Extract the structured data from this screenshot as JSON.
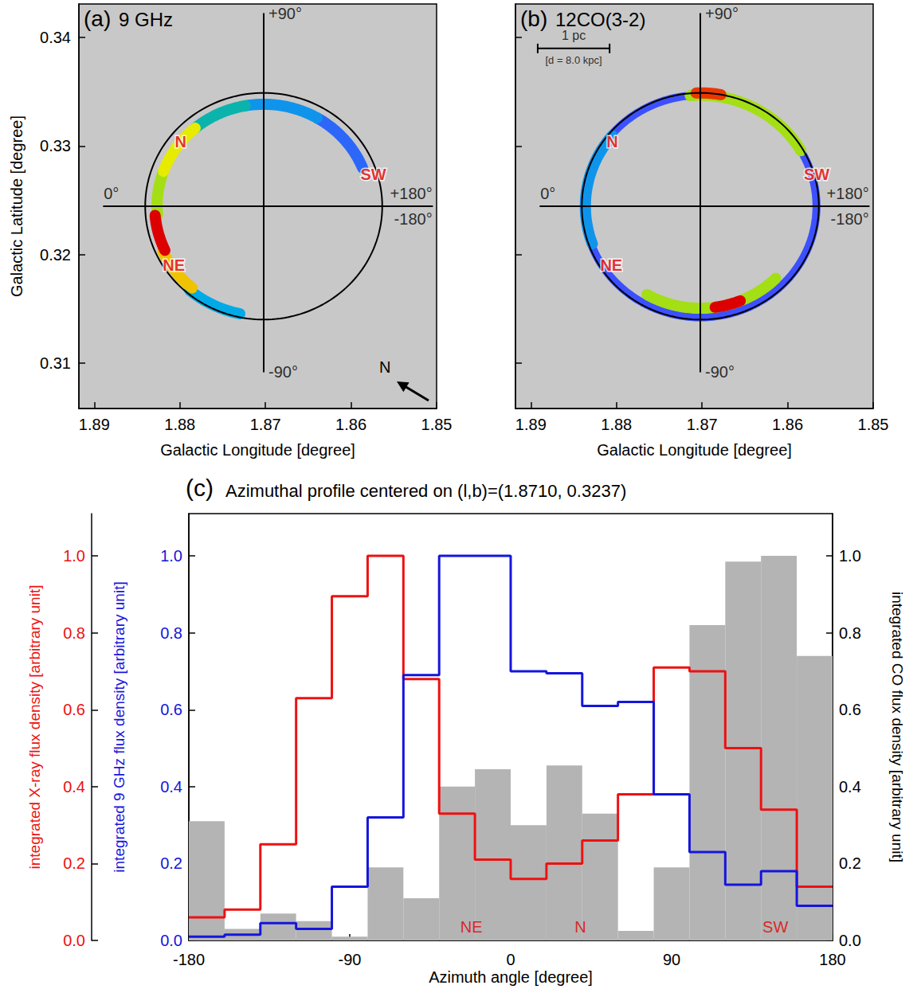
{
  "chart_data": [
    {
      "type": "map",
      "panel": "(a)",
      "title": "9 GHz",
      "xlabel": "Galactic Longitude [degree]",
      "ylabel": "Galactic Latitude [degree]",
      "xlim": [
        1.8918,
        1.85
      ],
      "xticks": [
        1.89,
        1.88,
        1.87,
        1.86,
        1.85
      ],
      "ylim": [
        0.3058,
        0.3431
      ],
      "yticks": [
        0.31,
        0.32,
        0.33,
        0.34
      ],
      "ellipse": {
        "l": 1.8702,
        "b": 0.32445,
        "semi_l": 0.01385,
        "semi_b": 0.01045
      },
      "crosshair": {
        "l": [
          1.8889,
          1.8505
        ],
        "b": [
          0.3092,
          0.3422
        ],
        "labels": {
          "top": "+90°",
          "bottom": "-90°",
          "left": "0°",
          "right": [
            "+180°",
            "-180°"
          ]
        }
      },
      "emission": [
        {
          "from": -78,
          "to": -50,
          "level": 0.45,
          "r": 0.97
        },
        {
          "from": -50,
          "to": -25,
          "level": 0.8,
          "r": 0.94
        },
        {
          "from": -25,
          "to": -5,
          "level": 1.0,
          "r": 0.92
        },
        {
          "from": -5,
          "to": 20,
          "level": 0.7,
          "r": 0.9
        },
        {
          "from": 20,
          "to": 50,
          "level": 0.75,
          "r": 0.9
        },
        {
          "from": 50,
          "to": 80,
          "level": 0.5,
          "r": 0.9
        },
        {
          "from": 80,
          "to": 120,
          "level": 0.4,
          "r": 0.9
        },
        {
          "from": 120,
          "to": 158,
          "level": 0.3,
          "r": 0.9
        }
      ],
      "regions": [
        {
          "text": "N",
          "l": 1.8799,
          "b": 0.3304
        },
        {
          "text": "NE",
          "l": 1.8807,
          "b": 0.319
        },
        {
          "text": "SW",
          "l": 1.8574,
          "b": 0.3274
        }
      ],
      "north_arrow": "N"
    },
    {
      "type": "map",
      "panel": "(b)",
      "title": "12CO(3-2)",
      "xlabel": "Galactic Longitude [degree]",
      "xlim": [
        1.8918,
        1.85
      ],
      "xticks": [
        1.89,
        1.88,
        1.87,
        1.86,
        1.85
      ],
      "ylim": [
        0.3058,
        0.3431
      ],
      "yticks": [
        0.31,
        0.32,
        0.33,
        0.34
      ],
      "tick_labels": "x",
      "ellipse": {
        "l": 1.8702,
        "b": 0.32445,
        "semi_l": 0.01385,
        "semi_b": 0.01045
      },
      "crosshair": {
        "l": [
          1.8889,
          1.8505
        ],
        "b": [
          0.3092,
          0.3422
        ],
        "labels": {
          "top": "+90°",
          "bottom": "-90°",
          "left": "0°",
          "right": [
            "+180°",
            "-180°"
          ]
        }
      },
      "emission": [
        {
          "from": -180,
          "to": 180,
          "level": 0.25,
          "r": 0.98
        },
        {
          "from": -135,
          "to": -60,
          "level": 0.7,
          "r": 0.9
        },
        {
          "from": -112,
          "to": -98,
          "level": 1.0,
          "r": 0.9
        },
        {
          "from": -20,
          "to": 40,
          "level": 0.4,
          "r": 0.97
        },
        {
          "from": 85,
          "to": 150,
          "level": 0.7,
          "r": 0.98
        },
        {
          "from": 88,
          "to": 100,
          "level": 0.95,
          "r": 1.0
        }
      ],
      "regions": [
        {
          "text": "N",
          "l": 1.8805,
          "b": 0.3304
        },
        {
          "text": "NE",
          "l": 1.8806,
          "b": 0.319
        },
        {
          "text": "SW",
          "l": 1.8566,
          "b": 0.3274
        }
      ],
      "scale_bar": {
        "label": "1 pc",
        "distance": "[d = 8.0 kpc]",
        "l": [
          1.8892,
          1.8808
        ],
        "b": 0.339
      }
    },
    {
      "type": "histogram",
      "panel": "(c)",
      "title": "Azimuthal profile centered on (l,b)=(1.8710, 0.3237)",
      "xlabel": "Azimuth angle [degree]",
      "xlim": [
        -180,
        180
      ],
      "xticks": [
        -180,
        -90,
        0,
        90,
        180
      ],
      "ylabel": "integrated X-ray flux density [arbitrary unit]",
      "ylim": [
        0,
        1.11
      ],
      "yticks": [
        {
          "value": 0,
          "label": "0.0"
        },
        0.2,
        0.4,
        0.6,
        0.8,
        {
          "value": 1,
          "label": "1.0"
        }
      ],
      "y2label": "integrated 9 GHz flux density [arbitrary unit]",
      "y2lim": [
        0,
        1.11
      ],
      "y2ticks": [
        {
          "value": 0,
          "label": "0.0"
        },
        0.2,
        0.4,
        0.6,
        0.8,
        {
          "value": 1,
          "label": "1.0"
        }
      ],
      "y3label": "integrated CO flux density [arbitrary unit]",
      "y3lim": [
        0,
        1.11
      ],
      "y3ticks": [
        {
          "value": 0,
          "label": "0.0"
        },
        0.2,
        0.4,
        0.6,
        0.8,
        {
          "value": 1,
          "label": "1.0"
        }
      ],
      "bins": [
        -180,
        -160,
        -140,
        -120,
        -100,
        -80,
        -60,
        -40,
        -20,
        0,
        20,
        40,
        60,
        80,
        100,
        120,
        140,
        160,
        180
      ],
      "series": [
        {
          "type": "bar",
          "axis": "y3",
          "color": "#b4b4b4",
          "values": [
            0.31,
            0.03,
            0.07,
            0.05,
            0.01,
            0.19,
            0.11,
            0.4,
            0.445,
            0.3,
            0.455,
            0.33,
            0.025,
            0.19,
            0.82,
            0.985,
            1.0,
            0.74
          ]
        },
        {
          "type": "line",
          "line_style": "step",
          "axis": "y",
          "color": "#ee1111",
          "values": [
            0.06,
            0.08,
            0.25,
            0.63,
            0.895,
            1.0,
            0.68,
            0.33,
            0.21,
            0.16,
            0.2,
            0.26,
            0.38,
            0.71,
            0.7,
            0.5,
            0.34,
            0.14
          ]
        },
        {
          "type": "line",
          "line_style": "step",
          "axis": "y2",
          "color": "#1515dd",
          "values": [
            0.01,
            0.015,
            0.045,
            0.03,
            0.14,
            0.32,
            0.69,
            1.0,
            1.0,
            0.7,
            0.695,
            0.61,
            0.62,
            0.38,
            0.23,
            0.145,
            0.18,
            0.09
          ]
        }
      ],
      "annotations": [
        {
          "text": "NE",
          "x": -22,
          "y": 0.035
        },
        {
          "text": "N",
          "x": 39,
          "y": 0.035
        },
        {
          "text": "SW",
          "x": 148,
          "y": 0.035
        }
      ]
    }
  ]
}
